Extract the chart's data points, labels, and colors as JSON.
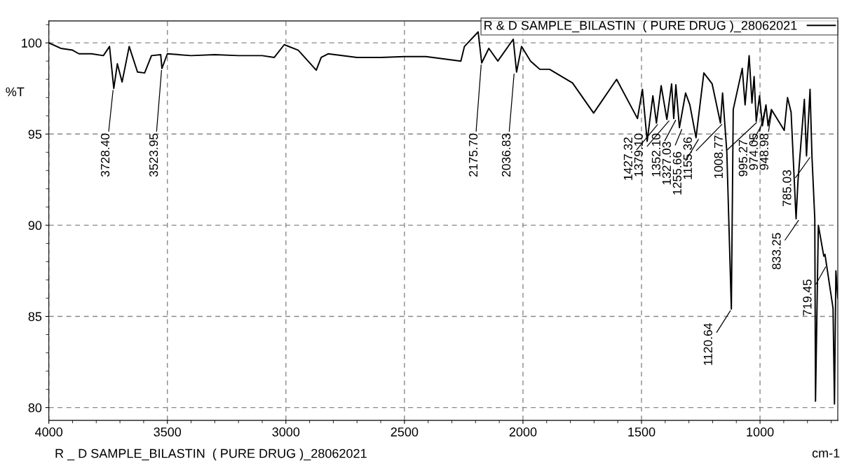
{
  "chart_data": {
    "type": "line",
    "xlabel": "cm-1",
    "ylabel": "%T",
    "xlim": [
      4000,
      672
    ],
    "ylim": [
      79.3,
      101.2
    ],
    "xticks": [
      4000,
      {
        "value": 3900,
        "label": null
      },
      {
        "value": 3800,
        "label": null
      },
      {
        "value": 3700,
        "label": null
      },
      {
        "value": 3600,
        "label": null
      },
      3500,
      {
        "value": 3400,
        "label": null
      },
      {
        "value": 3300,
        "label": null
      },
      {
        "value": 3200,
        "label": null
      },
      {
        "value": 3100,
        "label": null
      },
      3000,
      {
        "value": 2900,
        "label": null
      },
      {
        "value": 2800,
        "label": null
      },
      {
        "value": 2700,
        "label": null
      },
      {
        "value": 2600,
        "label": null
      },
      2500,
      {
        "value": 2400,
        "label": null
      },
      {
        "value": 2300,
        "label": null
      },
      {
        "value": 2200,
        "label": null
      },
      {
        "value": 2100,
        "label": null
      },
      2000,
      {
        "value": 1900,
        "label": null
      },
      {
        "value": 1800,
        "label": null
      },
      {
        "value": 1700,
        "label": null
      },
      {
        "value": 1600,
        "label": null
      },
      1500,
      {
        "value": 1400,
        "label": null
      },
      {
        "value": 1300,
        "label": null
      },
      {
        "value": 1200,
        "label": null
      },
      {
        "value": 1100,
        "label": null
      },
      1000,
      {
        "value": 900,
        "label": null
      },
      {
        "value": 800,
        "label": null
      },
      {
        "value": 700,
        "label": null
      }
    ],
    "yticks": [
      80,
      {
        "value": 81,
        "label": null
      },
      {
        "value": 82,
        "label": null
      },
      {
        "value": 83,
        "label": null
      },
      {
        "value": 84,
        "label": null
      },
      85,
      {
        "value": 86,
        "label": null
      },
      {
        "value": 87,
        "label": null
      },
      {
        "value": 88,
        "label": null
      },
      {
        "value": 89,
        "label": null
      },
      90,
      {
        "value": 91,
        "label": null
      },
      {
        "value": 92,
        "label": null
      },
      {
        "value": 93,
        "label": null
      },
      {
        "value": 94,
        "label": null
      },
      95,
      {
        "value": 96,
        "label": null
      },
      {
        "value": 97,
        "label": null
      },
      {
        "value": 98,
        "label": null
      },
      {
        "value": 99,
        "label": null
      },
      100,
      {
        "value": 101,
        "label": null
      }
    ],
    "grid": true,
    "legend": "top right",
    "line_style": "solid",
    "series": [
      {
        "name": "R & D SAMPLE_BILASTIN  ( PURE DRUG )_28062021",
        "color": "#000000",
        "x": [
          4000,
          3950,
          3900,
          3873,
          3820,
          3770,
          3744,
          3726,
          3711,
          3691,
          3661,
          3626,
          3596,
          3567,
          3528,
          3523,
          3500,
          3400,
          3300,
          3200,
          3100,
          3049,
          3007,
          2948,
          2872,
          2851,
          2822,
          2700,
          2600,
          2500,
          2409,
          2262,
          2247,
          2189,
          2174,
          2144,
          2106,
          2041,
          2027,
          2006,
          1968,
          1929,
          1888,
          1791,
          1702,
          1605,
          1517,
          1496,
          1476,
          1452,
          1437,
          1417,
          1393,
          1373,
          1364,
          1355,
          1340,
          1314,
          1296,
          1270,
          1237,
          1202,
          1167,
          1158,
          1140,
          1121,
          1113,
          1075,
          1063,
          1046,
          1034,
          1025,
          1016,
          1002,
          990,
          975,
          966,
          952,
          898,
          884,
          869,
          848,
          840,
          813,
          804,
          789,
          781,
          769,
          766,
          754,
          731,
          726,
          692,
          686,
          680,
          672
        ],
        "values": [
          100.0,
          99.7,
          99.6,
          99.4,
          99.4,
          99.3,
          99.8,
          97.5,
          98.85,
          97.85,
          99.8,
          98.4,
          98.35,
          99.3,
          99.35,
          98.6,
          99.4,
          99.3,
          99.35,
          99.3,
          99.3,
          99.2,
          99.9,
          99.6,
          98.5,
          99.2,
          99.4,
          99.2,
          99.2,
          99.25,
          99.25,
          99.0,
          99.8,
          100.6,
          98.9,
          99.7,
          99.0,
          100.2,
          98.4,
          99.8,
          99.0,
          98.55,
          98.55,
          97.8,
          96.15,
          98.0,
          95.85,
          97.45,
          94.6,
          97.1,
          95.6,
          97.65,
          95.8,
          97.75,
          95.85,
          97.7,
          95.35,
          97.25,
          96.6,
          94.8,
          98.35,
          97.75,
          95.6,
          97.25,
          94.0,
          85.4,
          96.35,
          98.6,
          96.6,
          99.3,
          96.7,
          98.15,
          95.7,
          97.1,
          95.45,
          96.6,
          95.45,
          96.35,
          95.2,
          97.0,
          96.2,
          90.35,
          92.4,
          96.9,
          93.8,
          97.45,
          93.8,
          90.35,
          80.35,
          90.0,
          88.3,
          88.4,
          85.45,
          80.2,
          87.5,
          86.0
        ]
      }
    ],
    "annotations": [
      {
        "text": "3728.40",
        "x": 3728.4,
        "y": 97.5
      },
      {
        "text": "3523.95",
        "x": 3523.95,
        "y": 98.6
      },
      {
        "text": "2175.70",
        "x": 2175.7,
        "y": 98.9
      },
      {
        "text": "2036.83",
        "x": 2036.83,
        "y": 98.4
      },
      {
        "text": "1427.32",
        "x": 1427.32,
        "y": 95.6
      },
      {
        "text": "1379.10",
        "x": 1379.1,
        "y": 95.8
      },
      {
        "text": "1352.10",
        "x": 1352.1,
        "y": 95.85
      },
      {
        "text": "1327.03",
        "x": 1327.03,
        "y": 95.35
      },
      {
        "text": "1255.66",
        "x": 1255.66,
        "y": 94.8
      },
      {
        "text": "1155.36",
        "x": 1155.36,
        "y": 95.6
      },
      {
        "text": "1120.64",
        "x": 1120.64,
        "y": 85.4
      },
      {
        "text": "1008.77",
        "x": 1008.77,
        "y": 95.7
      },
      {
        "text": "995.27",
        "x": 995.27,
        "y": 95.45
      },
      {
        "text": "974.05",
        "x": 974.05,
        "y": 96.6
      },
      {
        "text": "948.98",
        "x": 948.98,
        "y": 96.35
      },
      {
        "text": "833.25",
        "x": 833.25,
        "y": 90.35
      },
      {
        "text": "785.03",
        "x": 785.03,
        "y": 93.8
      },
      {
        "text": "719.45",
        "x": 719.45,
        "y": 87.8
      },
      "R _ D SAMPLE_BILASTIN  ( PURE DRUG )_28062021"
    ]
  }
}
